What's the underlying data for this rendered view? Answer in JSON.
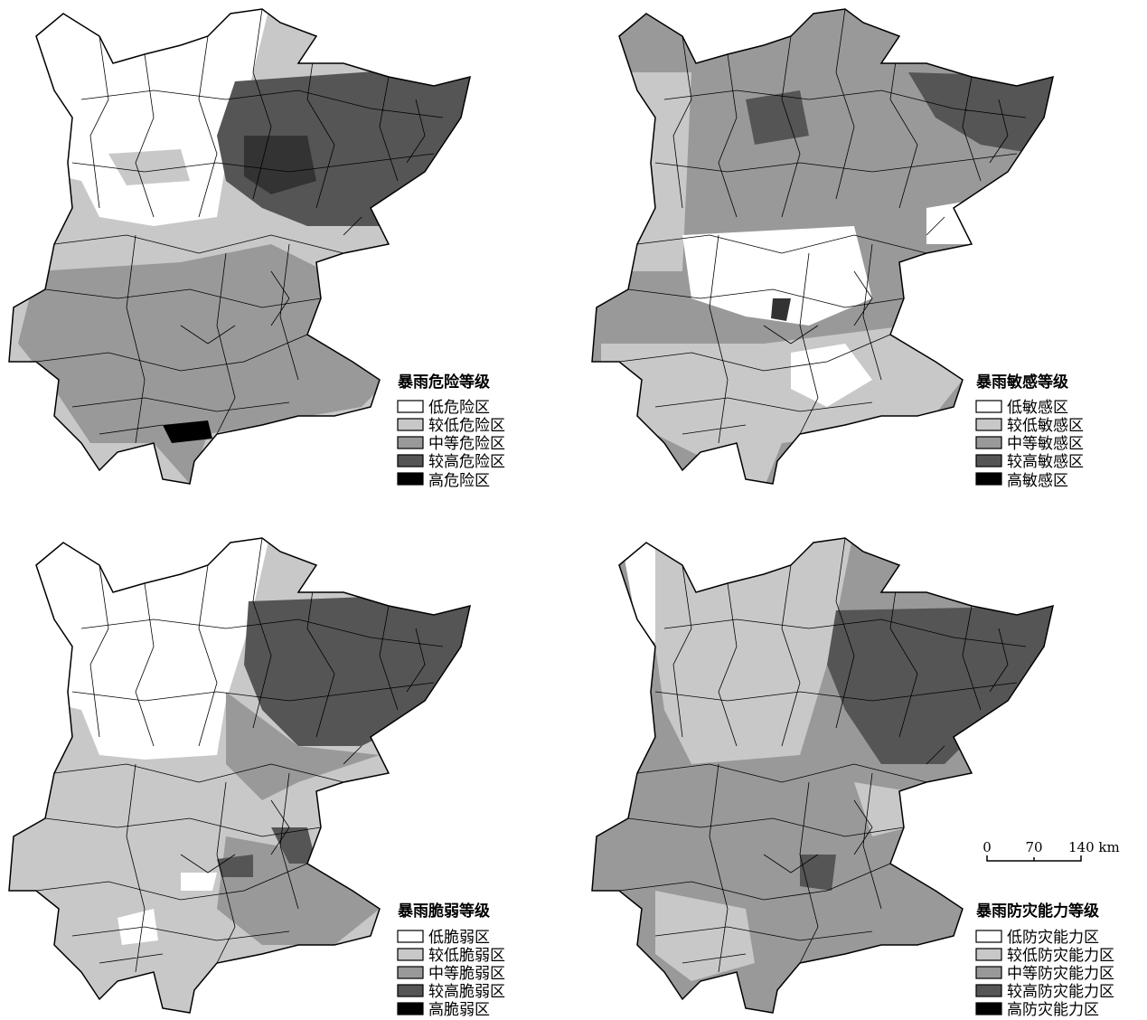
{
  "panels": [
    {
      "legend": {
        "title": "暴雨危险等级",
        "items": [
          "低危险区",
          "较低危险区",
          "中等危险区",
          "较高危险区",
          "高危险区"
        ]
      }
    },
    {
      "legend": {
        "title": "暴雨敏感等级",
        "items": [
          "低敏感区",
          "较低敏感区",
          "中等敏感区",
          "较高敏感区",
          "高敏感区"
        ]
      }
    },
    {
      "legend": {
        "title": "暴雨脆弱等级",
        "items": [
          "低脆弱区",
          "较低脆弱区",
          "中等脆弱区",
          "较高脆弱区",
          "高脆弱区"
        ]
      }
    },
    {
      "legend": {
        "title": "暴雨防灾能力等级",
        "items": [
          "低防灾能力区",
          "较低防灾能力区",
          "中等防灾能力区",
          "较高防灾能力区",
          "高防灾能力区"
        ]
      }
    }
  ],
  "scale_bar": {
    "labels": [
      "0",
      "70",
      "140 km"
    ]
  }
}
